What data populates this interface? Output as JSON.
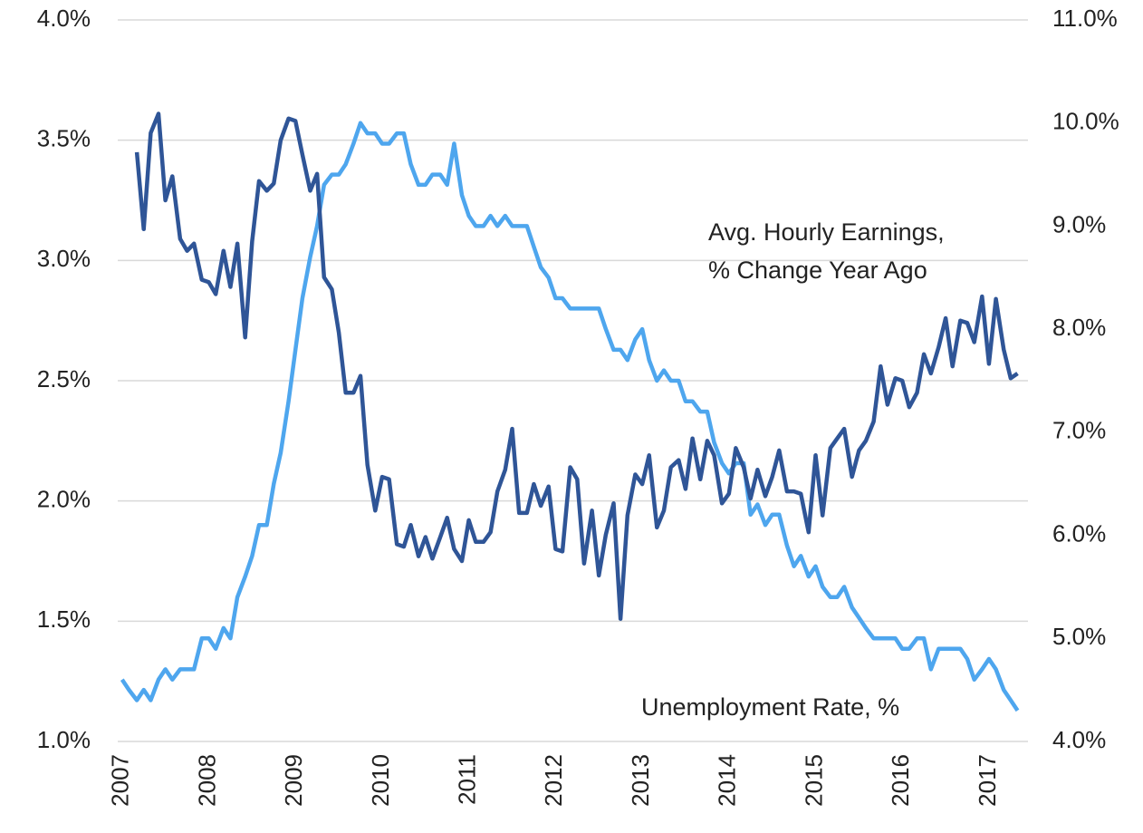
{
  "chart_data": {
    "type": "line",
    "annotations": [
      "Avg. Hourly Earnings,",
      "% Change Year Ago",
      "Unemployment Rate, %"
    ],
    "x": [
      2007,
      2007.08,
      2007.17,
      2007.25,
      2007.33,
      2007.42,
      2007.5,
      2007.58,
      2007.67,
      2007.75,
      2007.83,
      2007.92,
      2008,
      2008.08,
      2008.17,
      2008.25,
      2008.33,
      2008.42,
      2008.5,
      2008.58,
      2008.67,
      2008.75,
      2008.83,
      2008.92,
      2009,
      2009.08,
      2009.17,
      2009.25,
      2009.33,
      2009.42,
      2009.5,
      2009.58,
      2009.67,
      2009.75,
      2009.83,
      2009.92,
      2010,
      2010.08,
      2010.17,
      2010.25,
      2010.33,
      2010.42,
      2010.5,
      2010.58,
      2010.67,
      2010.75,
      2010.83,
      2010.92,
      2011,
      2011.08,
      2011.17,
      2011.25,
      2011.33,
      2011.42,
      2011.5,
      2011.58,
      2011.67,
      2011.75,
      2011.83,
      2011.92,
      2012,
      2012.08,
      2012.17,
      2012.25,
      2012.33,
      2012.42,
      2012.5,
      2012.58,
      2012.67,
      2012.75,
      2012.83,
      2012.92,
      2013,
      2013.08,
      2013.17,
      2013.25,
      2013.33,
      2013.42,
      2013.5,
      2013.58,
      2013.67,
      2013.75,
      2013.83,
      2013.92,
      2014,
      2014.08,
      2014.17,
      2014.25,
      2014.33,
      2014.42,
      2014.5,
      2014.58,
      2014.67,
      2014.75,
      2014.83,
      2014.92,
      2015,
      2015.08,
      2015.17,
      2015.25,
      2015.33,
      2015.42,
      2015.5,
      2015.58,
      2015.67,
      2015.75,
      2015.83,
      2015.92,
      2016,
      2016.08,
      2016.17,
      2016.25,
      2016.33,
      2016.42,
      2016.5,
      2016.58,
      2016.67,
      2016.75,
      2016.83,
      2016.92,
      2017,
      2017.08,
      2017.17,
      2017.25,
      2017.33
    ],
    "series": [
      {
        "color": "#2f5597",
        "axis": "y",
        "values": [
          null,
          null,
          3.45,
          3.13,
          3.53,
          3.61,
          3.25,
          3.35,
          3.09,
          3.04,
          3.07,
          2.92,
          2.91,
          2.86,
          3.04,
          2.89,
          3.07,
          2.68,
          3.08,
          3.33,
          3.29,
          3.32,
          3.5,
          3.59,
          3.58,
          3.44,
          3.29,
          3.36,
          2.93,
          2.88,
          2.7,
          2.45,
          2.45,
          2.52,
          2.15,
          1.96,
          2.1,
          2.09,
          1.82,
          1.81,
          1.9,
          1.77,
          1.85,
          1.76,
          1.85,
          1.93,
          1.8,
          1.75,
          1.92,
          1.83,
          1.83,
          1.87,
          2.04,
          2.13,
          2.3,
          1.95,
          1.95,
          2.07,
          1.98,
          2.06,
          1.8,
          1.79,
          2.14,
          2.09,
          1.74,
          1.96,
          1.69,
          1.86,
          1.99,
          1.51,
          1.94,
          2.11,
          2.07,
          2.19,
          1.89,
          1.96,
          2.14,
          2.17,
          2.05,
          2.26,
          2.09,
          2.25,
          2.19,
          1.99,
          2.03,
          2.22,
          2.14,
          2.01,
          2.13,
          2.02,
          2.1,
          2.21,
          2.04,
          2.04,
          2.03,
          1.87,
          2.19,
          1.94,
          2.22,
          2.26,
          2.3,
          2.1,
          2.21,
          2.25,
          2.33,
          2.56,
          2.4,
          2.51,
          2.5,
          2.39,
          2.45,
          2.61,
          2.53,
          2.64,
          2.76,
          2.56,
          2.75,
          2.74,
          2.66,
          2.85,
          2.57,
          2.84,
          2.63,
          2.51,
          2.53
        ]
      },
      {
        "color": "#4ea6ee",
        "axis": "y2",
        "values": [
          4.6,
          4.5,
          4.4,
          4.5,
          4.4,
          4.6,
          4.7,
          4.6,
          4.7,
          4.7,
          4.7,
          5.0,
          5.0,
          4.9,
          5.1,
          5.0,
          5.4,
          5.6,
          5.8,
          6.1,
          6.1,
          6.5,
          6.8,
          7.3,
          7.8,
          8.3,
          8.7,
          9.0,
          9.4,
          9.5,
          9.5,
          9.6,
          9.8,
          10.0,
          9.9,
          9.9,
          9.8,
          9.8,
          9.9,
          9.9,
          9.6,
          9.4,
          9.4,
          9.5,
          9.5,
          9.4,
          9.8,
          9.3,
          9.1,
          9.0,
          9.0,
          9.1,
          9.0,
          9.1,
          9.0,
          9.0,
          9.0,
          8.8,
          8.6,
          8.5,
          8.3,
          8.3,
          8.2,
          8.2,
          8.2,
          8.2,
          8.2,
          8.0,
          7.8,
          7.8,
          7.7,
          7.9,
          8.0,
          7.7,
          7.5,
          7.6,
          7.5,
          7.5,
          7.3,
          7.3,
          7.2,
          7.2,
          6.9,
          6.7,
          6.6,
          6.7,
          6.7,
          6.2,
          6.3,
          6.1,
          6.2,
          6.2,
          5.9,
          5.7,
          5.8,
          5.6,
          5.7,
          5.5,
          5.4,
          5.4,
          5.5,
          5.3,
          5.2,
          5.1,
          5.0,
          5.0,
          5.0,
          5.0,
          4.9,
          4.9,
          5.0,
          5.0,
          4.7,
          4.9,
          4.9,
          4.9,
          4.9,
          4.8,
          4.6,
          4.7,
          4.8,
          4.7,
          4.5,
          4.4,
          4.3
        ]
      }
    ],
    "xlim": [
      2006.95,
      2017.45
    ],
    "xticks": [
      2007,
      2008,
      2009,
      2010,
      2011,
      2012,
      2013,
      2014,
      2015,
      2016,
      2017
    ],
    "ylim": [
      1.0,
      4.0
    ],
    "yticks": [
      {
        "value": 1.0,
        "label": "1.0%"
      },
      {
        "value": 1.5,
        "label": "1.5%"
      },
      {
        "value": 2.0,
        "label": "2.0%"
      },
      {
        "value": 2.5,
        "label": "2.5%"
      },
      {
        "value": 3.0,
        "label": "3.0%"
      },
      {
        "value": 3.5,
        "label": "3.5%"
      },
      {
        "value": 4.0,
        "label": "4.0%"
      }
    ],
    "y2lim": [
      4.0,
      11.0
    ],
    "y2ticks": [
      {
        "value": 4.0,
        "label": "4.0%"
      },
      {
        "value": 5.0,
        "label": "5.0%"
      },
      {
        "value": 6.0,
        "label": "6.0%"
      },
      {
        "value": 7.0,
        "label": "7.0%"
      },
      {
        "value": 8.0,
        "label": "8.0%"
      },
      {
        "value": 9.0,
        "label": "9.0%"
      },
      {
        "value": 10.0,
        "label": "10.0%"
      },
      {
        "value": 11.0,
        "label": "11.0%"
      }
    ],
    "grid": true
  }
}
